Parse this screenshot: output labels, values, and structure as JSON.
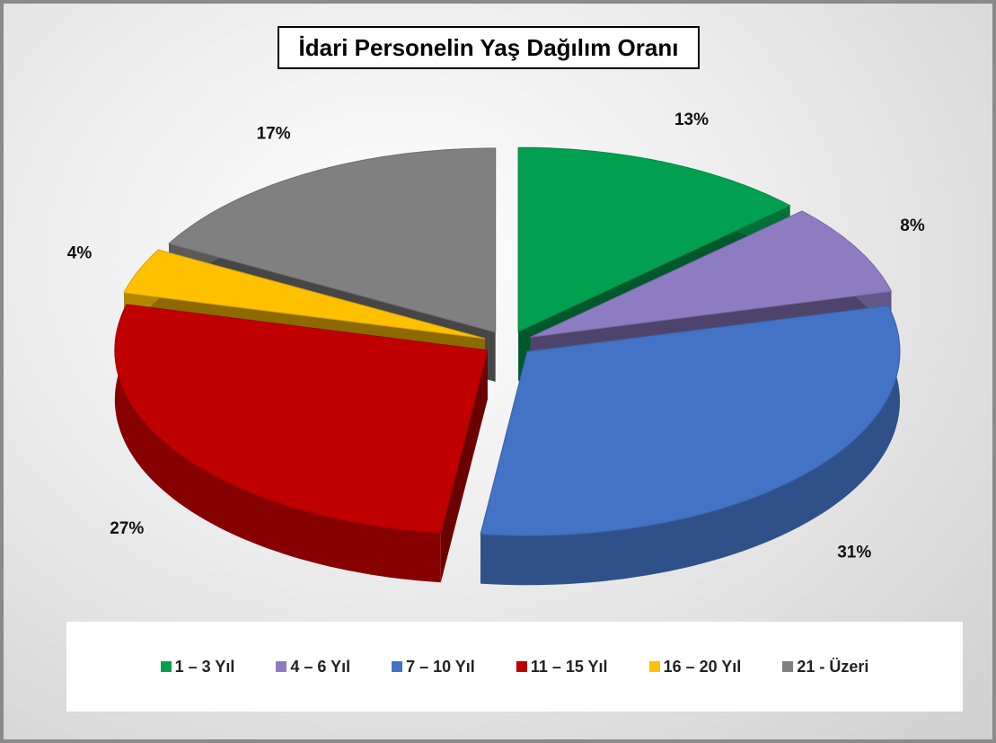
{
  "chart_data": {
    "type": "pie",
    "title": "İdari Personelin Yaş Dağılım Oranı",
    "categories": [
      "1 – 3 Yıl",
      "4 – 6 Yıl",
      "7 – 10 Yıl",
      "11 – 15 Yıl",
      "16 – 20 Yıl",
      "21 - Üzeri"
    ],
    "values": [
      13,
      8,
      31,
      27,
      4,
      17
    ],
    "value_labels": [
      "13%",
      "8%",
      "31%",
      "27%",
      "4%",
      "17%"
    ],
    "colors": [
      "#00a050",
      "#8e7cc3",
      "#4472c4",
      "#c00000",
      "#ffc000",
      "#808080"
    ],
    "legend": "bottom"
  }
}
